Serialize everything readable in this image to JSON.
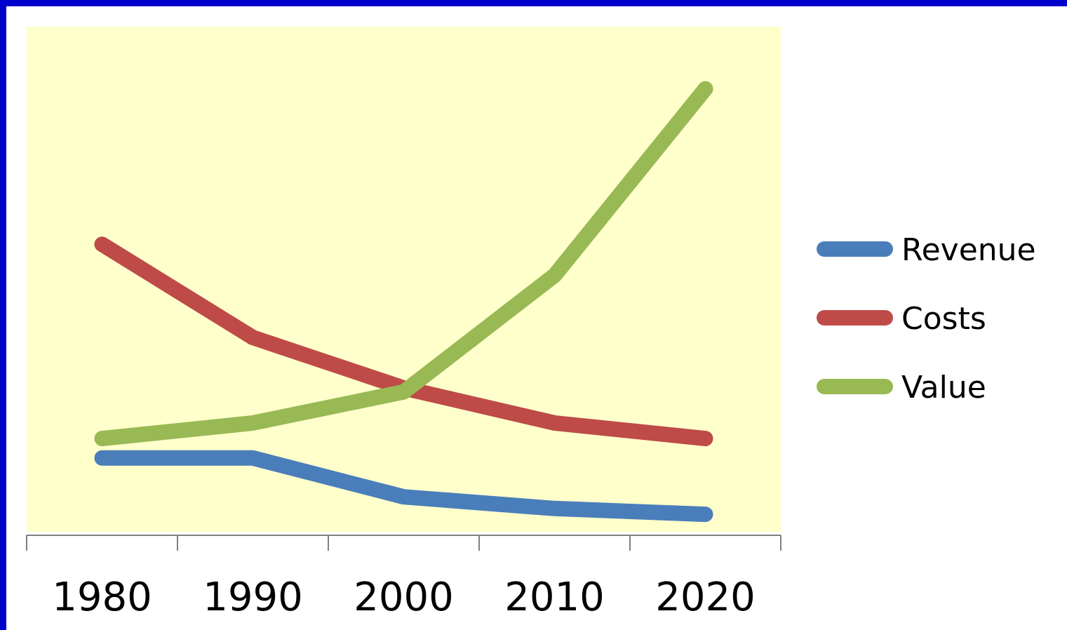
{
  "chart_data": {
    "type": "line",
    "categories": [
      "1980",
      "1990",
      "2000",
      "2010",
      "2020"
    ],
    "series": [
      {
        "name": "Revenue",
        "color": "#4a7ebb",
        "values": [
          19,
          19,
          9,
          6,
          4.5
        ]
      },
      {
        "name": "Costs",
        "color": "#be4b48",
        "values": [
          74,
          50,
          37,
          28,
          24
        ]
      },
      {
        "name": "Value",
        "color": "#98b954",
        "values": [
          24,
          28,
          36,
          66,
          114
        ]
      }
    ],
    "title": "",
    "xlabel": "",
    "ylabel": "",
    "ylim": [
      0,
      130
    ],
    "grid": false,
    "legend": "right",
    "plot_background": "#ffffcc"
  }
}
